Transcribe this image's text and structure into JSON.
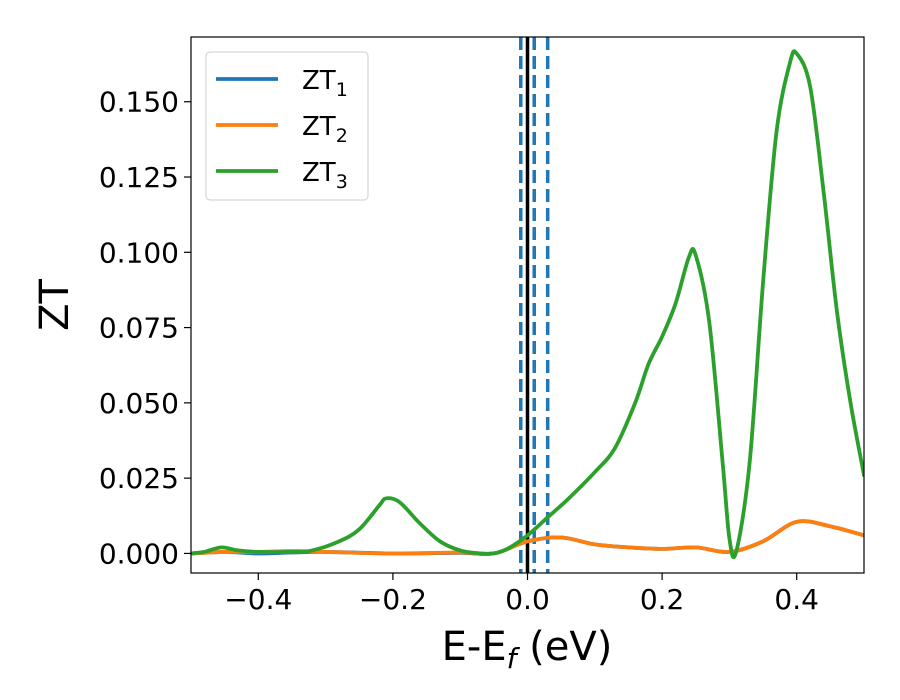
{
  "chart_data": {
    "type": "line",
    "title": "",
    "xlabel": "E-E",
    "xlabel_sub": "f",
    "xlabel_unit": " (eV)",
    "ylabel": "ZT",
    "xlim": [
      -0.5,
      0.5
    ],
    "ylim": [
      -0.0065,
      0.1715
    ],
    "xticks": [
      -0.4,
      -0.2,
      0.0,
      0.2,
      0.4
    ],
    "xtick_labels": [
      "−0.4",
      "−0.2",
      "0.0",
      "0.2",
      "0.4"
    ],
    "yticks": [
      0.0,
      0.025,
      0.05,
      0.075,
      0.1,
      0.125,
      0.15
    ],
    "ytick_labels": [
      "0.000",
      "0.025",
      "0.050",
      "0.075",
      "0.100",
      "0.125",
      "0.150"
    ],
    "grid": false,
    "legend_position": "top-left",
    "vertical_lines": [
      {
        "x": -0.01,
        "style": "dashed",
        "color": "#1f77b4"
      },
      {
        "x": 0.01,
        "style": "dashed",
        "color": "#1f77b4"
      },
      {
        "x": 0.03,
        "style": "dashed",
        "color": "#1f77b4"
      },
      {
        "x": 0.0,
        "style": "solid",
        "color": "#000000"
      }
    ],
    "series": [
      {
        "name": "ZT",
        "sub": "1",
        "color": "#1f77b4",
        "x": [
          -0.5,
          -0.45,
          -0.4,
          -0.35,
          -0.3,
          -0.2,
          -0.1,
          -0.05,
          0.0,
          0.05,
          0.1,
          0.15,
          0.2,
          0.25,
          0.3,
          0.35,
          0.4,
          0.45,
          0.5
        ],
        "y": [
          0.0,
          0.0005,
          0.0,
          0.0003,
          0.0005,
          0.0,
          0.0002,
          0.0,
          0.004,
          0.0053,
          0.003,
          0.002,
          0.0015,
          0.002,
          0.0005,
          0.004,
          0.0105,
          0.009,
          0.006
        ]
      },
      {
        "name": "ZT",
        "sub": "2",
        "color": "#ff7f0e",
        "x": [
          -0.5,
          -0.45,
          -0.4,
          -0.35,
          -0.3,
          -0.2,
          -0.1,
          -0.05,
          0.0,
          0.05,
          0.1,
          0.15,
          0.2,
          0.25,
          0.3,
          0.35,
          0.4,
          0.45,
          0.5
        ],
        "y": [
          0.0,
          0.0005,
          0.0005,
          0.0008,
          0.0005,
          0.0,
          0.0003,
          0.0,
          0.004,
          0.0053,
          0.003,
          0.002,
          0.0015,
          0.002,
          0.0005,
          0.004,
          0.0105,
          0.009,
          0.006
        ]
      },
      {
        "name": "ZT",
        "sub": "3",
        "color": "#2ca02c",
        "x": [
          -0.5,
          -0.48,
          -0.455,
          -0.43,
          -0.4,
          -0.35,
          -0.32,
          -0.28,
          -0.25,
          -0.22,
          -0.21,
          -0.19,
          -0.16,
          -0.13,
          -0.1,
          -0.07,
          -0.05,
          -0.03,
          0.0,
          0.03,
          0.06,
          0.1,
          0.13,
          0.16,
          0.18,
          0.2,
          0.22,
          0.24,
          0.25,
          0.27,
          0.29,
          0.3,
          0.31,
          0.33,
          0.35,
          0.37,
          0.39,
          0.4,
          0.42,
          0.44,
          0.46,
          0.48,
          0.5
        ],
        "y": [
          0.0,
          0.0005,
          0.002,
          0.001,
          0.0005,
          0.0005,
          0.001,
          0.004,
          0.008,
          0.016,
          0.0183,
          0.017,
          0.01,
          0.004,
          0.001,
          0.0,
          0.0,
          0.0015,
          0.006,
          0.012,
          0.018,
          0.027,
          0.035,
          0.05,
          0.063,
          0.072,
          0.083,
          0.0985,
          0.099,
          0.077,
          0.03,
          0.005,
          0.0005,
          0.03,
          0.09,
          0.14,
          0.163,
          0.166,
          0.155,
          0.12,
          0.08,
          0.05,
          0.026
        ]
      }
    ]
  }
}
